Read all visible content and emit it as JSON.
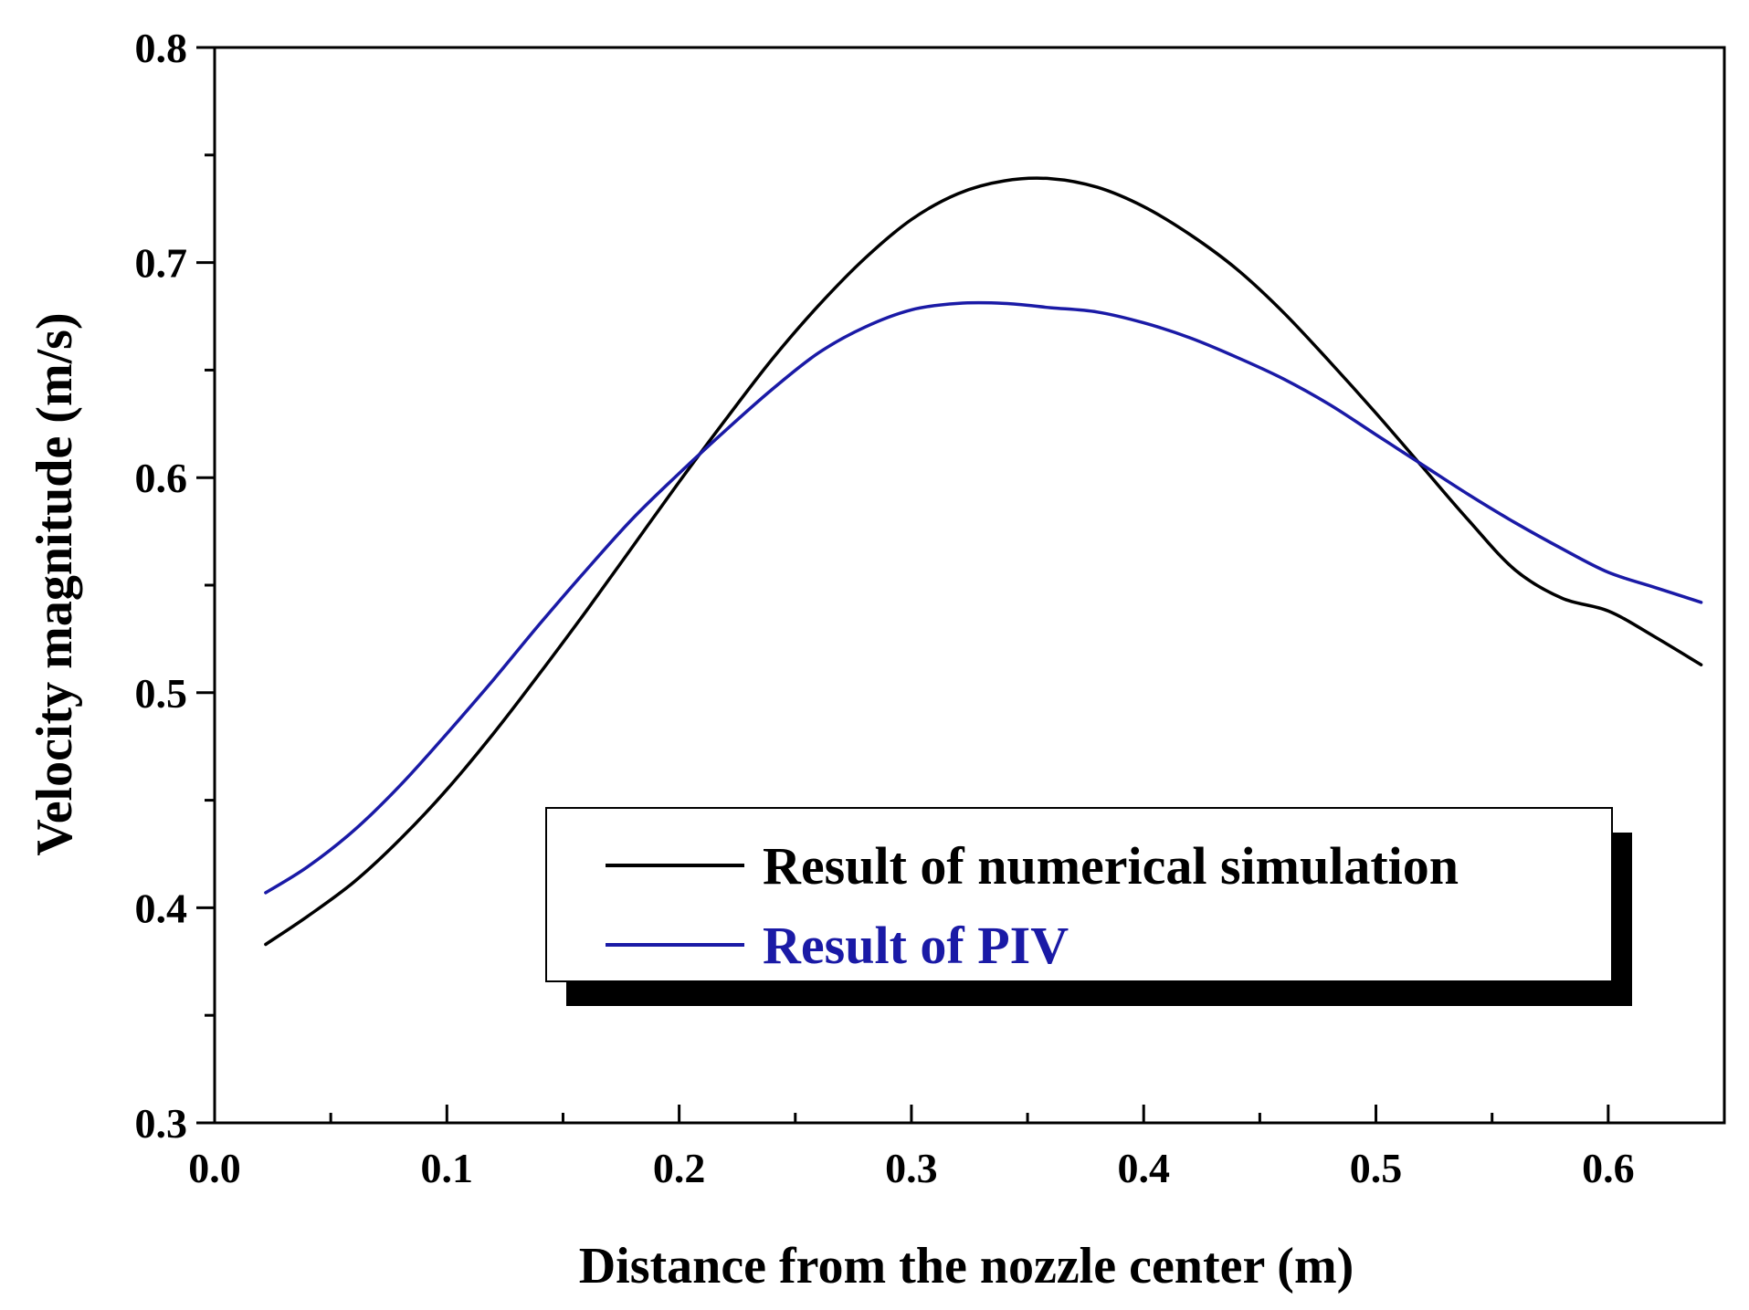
{
  "chart_data": {
    "type": "line",
    "title": "",
    "xlabel": "Distance from the nozzle center (m)",
    "ylabel": "Velocity magnitude (m/s)",
    "xlim": [
      0.0,
      0.65
    ],
    "ylim": [
      0.3,
      0.8
    ],
    "xticks": [
      0.0,
      0.1,
      0.2,
      0.3,
      0.4,
      0.5,
      0.6
    ],
    "xtick_labels": [
      "0.0",
      "0.1",
      "0.2",
      "0.3",
      "0.4",
      "0.5",
      "0.6"
    ],
    "xminor": [
      0.05,
      0.15,
      0.25,
      0.35,
      0.45,
      0.55
    ],
    "yticks": [
      0.3,
      0.4,
      0.5,
      0.6,
      0.7,
      0.8
    ],
    "ytick_labels": [
      "0.3",
      "0.4",
      "0.5",
      "0.6",
      "0.7",
      "0.8"
    ],
    "yminor": [
      0.35,
      0.45,
      0.55,
      0.65,
      0.75
    ],
    "grid": false,
    "legend_position": "lower-right",
    "series": [
      {
        "name": "Result of numerical simulation",
        "color": "#000000",
        "x": [
          0.022,
          0.04,
          0.06,
          0.08,
          0.1,
          0.12,
          0.14,
          0.16,
          0.18,
          0.2,
          0.22,
          0.24,
          0.26,
          0.28,
          0.3,
          0.32,
          0.34,
          0.36,
          0.38,
          0.4,
          0.42,
          0.44,
          0.46,
          0.48,
          0.5,
          0.52,
          0.54,
          0.56,
          0.58,
          0.6,
          0.62,
          0.64
        ],
        "y": [
          0.383,
          0.396,
          0.412,
          0.432,
          0.455,
          0.481,
          0.509,
          0.538,
          0.568,
          0.598,
          0.627,
          0.655,
          0.68,
          0.702,
          0.72,
          0.732,
          0.738,
          0.739,
          0.735,
          0.726,
          0.713,
          0.697,
          0.677,
          0.654,
          0.63,
          0.605,
          0.58,
          0.557,
          0.544,
          0.538,
          0.526,
          0.513
        ]
      },
      {
        "name": "Result of PIV",
        "color": "#1a1aa6",
        "x": [
          0.022,
          0.04,
          0.06,
          0.08,
          0.1,
          0.12,
          0.14,
          0.16,
          0.18,
          0.2,
          0.22,
          0.24,
          0.26,
          0.28,
          0.3,
          0.32,
          0.34,
          0.36,
          0.38,
          0.4,
          0.42,
          0.44,
          0.46,
          0.48,
          0.5,
          0.52,
          0.54,
          0.56,
          0.58,
          0.6,
          0.62,
          0.64
        ],
        "y": [
          0.407,
          0.419,
          0.436,
          0.457,
          0.481,
          0.506,
          0.532,
          0.557,
          0.581,
          0.602,
          0.622,
          0.641,
          0.658,
          0.67,
          0.678,
          0.681,
          0.681,
          0.679,
          0.677,
          0.672,
          0.665,
          0.656,
          0.646,
          0.634,
          0.62,
          0.606,
          0.592,
          0.579,
          0.567,
          0.556,
          0.549,
          0.542
        ]
      }
    ]
  },
  "legend": {
    "items": [
      {
        "label": "Result of numerical simulation",
        "color": "#000000"
      },
      {
        "label": "Result of PIV",
        "color": "#1a1aa6"
      }
    ]
  }
}
